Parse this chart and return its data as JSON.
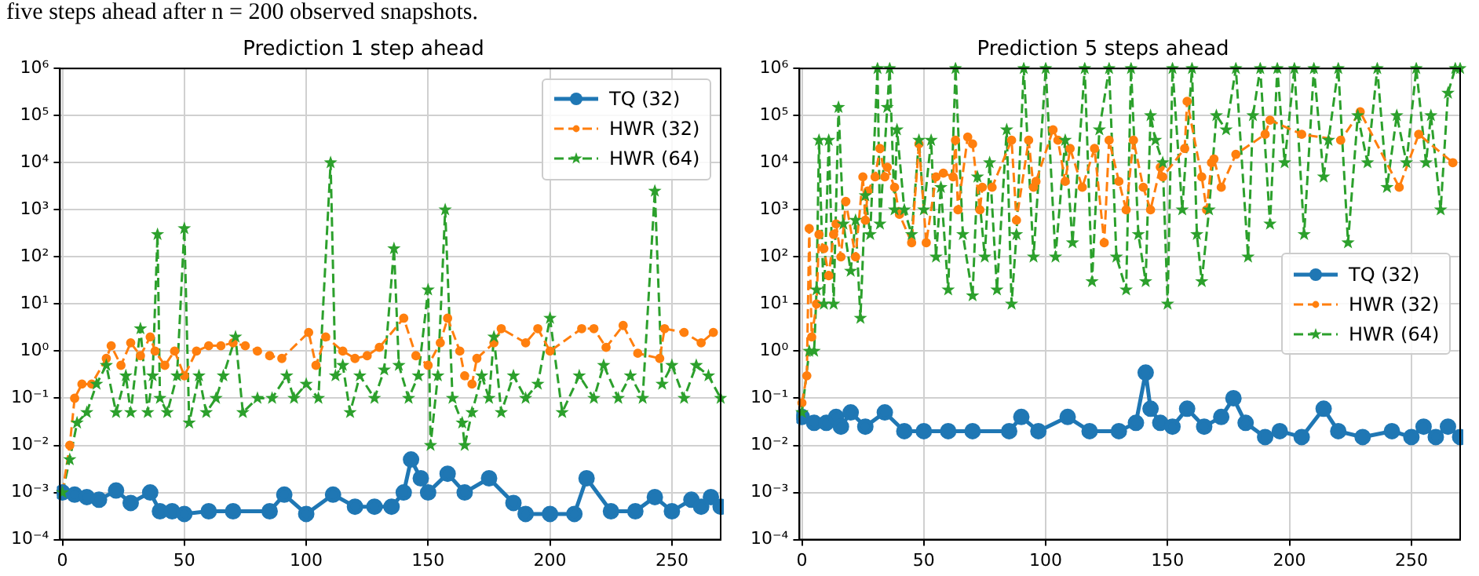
{
  "chart_data": [
    {
      "type": "line",
      "title": "Prediction 1 step ahead",
      "annotations": [
        "five steps ahead after n = 200 observed snapshots."
      ],
      "xlim": [
        -1,
        270
      ],
      "xticks": [
        0,
        50,
        100,
        150,
        200,
        250
      ],
      "log": "y",
      "ylim": [
        0.0001,
        1000000
      ],
      "yticks": [
        {
          "value": 0.0001,
          "label": "10⁻⁴"
        },
        {
          "value": 0.001,
          "label": "10⁻³"
        },
        {
          "value": 0.01,
          "label": "10⁻²"
        },
        {
          "value": 0.1,
          "label": "10⁻¹"
        },
        {
          "value": 1,
          "label": "10⁰"
        },
        {
          "value": 10,
          "label": "10¹"
        },
        {
          "value": 100,
          "label": "10²"
        },
        {
          "value": 1000,
          "label": "10³"
        },
        {
          "value": 10000,
          "label": "10⁴"
        },
        {
          "value": 100000,
          "label": "10⁵"
        },
        {
          "value": 1000000,
          "label": "10⁶"
        }
      ],
      "grid": true,
      "legend": "top right",
      "series": [
        {
          "name": "TQ (32)",
          "color": "#1f77b4",
          "marker": "circle",
          "line_style": "solid",
          "x": [
            0,
            5,
            10,
            15,
            22,
            28,
            36,
            40,
            45,
            50,
            60,
            70,
            85,
            91,
            100,
            111,
            120,
            128,
            135,
            140,
            143,
            147,
            150,
            158,
            165,
            175,
            185,
            190,
            200,
            210,
            215,
            225,
            235,
            243,
            250,
            258,
            262,
            266,
            270
          ],
          "values": [
            0.001,
            0.0009,
            0.0008,
            0.0007,
            0.0011,
            0.0006,
            0.001,
            0.0004,
            0.0004,
            0.00035,
            0.0004,
            0.0004,
            0.0004,
            0.0009,
            0.00035,
            0.0009,
            0.0005,
            0.0005,
            0.0005,
            0.001,
            0.005,
            0.002,
            0.001,
            0.0025,
            0.001,
            0.002,
            0.0006,
            0.00035,
            0.00035,
            0.00035,
            0.002,
            0.0004,
            0.0004,
            0.0008,
            0.0004,
            0.0007,
            0.0005,
            0.0008,
            0.0005
          ]
        },
        {
          "name": "HWR (32)",
          "color": "#ff7f0e",
          "marker": "circle",
          "line_style": "dashed",
          "x": [
            0,
            3,
            5,
            8,
            12,
            18,
            20,
            24,
            28,
            32,
            36,
            38,
            42,
            46,
            50,
            55,
            60,
            65,
            70,
            75,
            80,
            85,
            90,
            101,
            104,
            108,
            115,
            120,
            125,
            130,
            140,
            145,
            150,
            155,
            158,
            163,
            165,
            168,
            170,
            177,
            180,
            190,
            195,
            200,
            213,
            218,
            223,
            230,
            236,
            245,
            247,
            255,
            262,
            267
          ],
          "values": [
            0.001,
            0.01,
            0.1,
            0.2,
            0.2,
            0.7,
            1.3,
            0.5,
            1.5,
            0.8,
            2,
            1,
            0.5,
            1,
            0.3,
            1,
            1.3,
            1.3,
            1.5,
            1.3,
            1,
            0.8,
            0.7,
            2.5,
            0.5,
            2,
            1,
            0.7,
            0.8,
            1.2,
            5,
            0.8,
            0.5,
            1.5,
            5,
            1,
            0.3,
            0.2,
            0.7,
            1.5,
            3,
            1.5,
            3,
            1,
            3,
            3,
            1.2,
            3.5,
            0.9,
            0.7,
            3,
            2.5,
            1.5,
            2.5
          ]
        },
        {
          "name": "HWR (64)",
          "color": "#2ca02c",
          "marker": "star",
          "line_style": "dashed",
          "x": [
            0,
            3,
            6,
            10,
            14,
            18,
            22,
            26,
            28,
            32,
            35,
            37,
            39,
            40,
            43,
            47,
            50,
            52,
            56,
            59,
            63,
            66,
            71,
            74,
            80,
            86,
            92,
            95,
            100,
            105,
            110,
            112,
            115,
            118,
            122,
            128,
            132,
            136,
            138,
            142,
            146,
            150,
            151,
            154,
            157,
            160,
            164,
            165,
            168,
            172,
            175,
            177,
            180,
            185,
            190,
            195,
            200,
            205,
            212,
            218,
            222,
            228,
            233,
            238,
            243,
            246,
            250,
            255,
            260,
            265,
            270
          ],
          "values": [
            0.001,
            0.005,
            0.03,
            0.05,
            0.2,
            0.5,
            0.05,
            0.3,
            0.05,
            3,
            0.05,
            0.3,
            300,
            0.1,
            0.05,
            0.3,
            400,
            0.03,
            0.3,
            0.05,
            0.1,
            0.3,
            2,
            0.05,
            0.1,
            0.1,
            0.3,
            0.1,
            0.2,
            0.1,
            10000,
            0.3,
            0.5,
            0.05,
            0.3,
            0.1,
            0.4,
            150,
            0.5,
            0.1,
            0.3,
            20,
            0.01,
            0.3,
            1000,
            0.1,
            0.03,
            0.01,
            0.05,
            0.3,
            0.1,
            2,
            0.05,
            0.3,
            0.1,
            0.2,
            5,
            0.05,
            0.3,
            0.1,
            0.5,
            0.1,
            0.3,
            0.1,
            2500,
            0.2,
            0.5,
            0.1,
            0.5,
            0.3,
            0.1
          ]
        }
      ]
    },
    {
      "type": "line",
      "title": "Prediction 5 steps ahead",
      "xlim": [
        -1,
        270
      ],
      "xticks": [
        0,
        50,
        100,
        150,
        200,
        250
      ],
      "log": "y",
      "ylim": [
        0.0001,
        1000000
      ],
      "yticks": [
        {
          "value": 0.0001,
          "label": "10⁻⁴"
        },
        {
          "value": 0.001,
          "label": "10⁻³"
        },
        {
          "value": 0.01,
          "label": "10⁻²"
        },
        {
          "value": 0.1,
          "label": "10⁻¹"
        },
        {
          "value": 1,
          "label": "10⁰"
        },
        {
          "value": 10,
          "label": "10¹"
        },
        {
          "value": 100,
          "label": "10²"
        },
        {
          "value": 1000,
          "label": "10³"
        },
        {
          "value": 10000,
          "label": "10⁴"
        },
        {
          "value": 100000,
          "label": "10⁵"
        },
        {
          "value": 1000000,
          "label": "10⁶"
        }
      ],
      "grid": true,
      "legend": "right",
      "series": [
        {
          "name": "TQ (32)",
          "color": "#1f77b4",
          "marker": "circle",
          "line_style": "solid",
          "x": [
            0,
            5,
            10,
            14,
            16,
            20,
            26,
            34,
            42,
            50,
            60,
            70,
            85,
            90,
            97,
            109,
            118,
            130,
            137,
            141,
            143,
            147,
            152,
            158,
            165,
            172,
            177,
            182,
            190,
            196,
            205,
            214,
            220,
            230,
            242,
            250,
            255,
            260,
            265,
            270
          ],
          "values": [
            0.04,
            0.03,
            0.03,
            0.04,
            0.025,
            0.05,
            0.025,
            0.05,
            0.02,
            0.02,
            0.02,
            0.02,
            0.02,
            0.04,
            0.02,
            0.04,
            0.02,
            0.02,
            0.03,
            0.35,
            0.06,
            0.03,
            0.025,
            0.06,
            0.025,
            0.04,
            0.1,
            0.03,
            0.015,
            0.02,
            0.015,
            0.06,
            0.02,
            0.015,
            0.02,
            0.015,
            0.025,
            0.015,
            0.025,
            0.015
          ]
        },
        {
          "name": "HWR (32)",
          "color": "#ff7f0e",
          "marker": "circle",
          "line_style": "dashed",
          "x": [
            0,
            2,
            3,
            4,
            6,
            7,
            9,
            11,
            13,
            14,
            16,
            18,
            22,
            25,
            26,
            27,
            30,
            32,
            34,
            35,
            38,
            40,
            45,
            48,
            51,
            55,
            58,
            62,
            63,
            64,
            68,
            70,
            73,
            74,
            78,
            86,
            88,
            93,
            95,
            96,
            103,
            105,
            108,
            110,
            115,
            120,
            124,
            126,
            130,
            133,
            136,
            140,
            143,
            147,
            148,
            157,
            158,
            164,
            166,
            168,
            169,
            172,
            178,
            190,
            192,
            205,
            221,
            229,
            245,
            253,
            267
          ],
          "values": [
            0.08,
            0.3,
            400,
            2,
            10,
            300,
            150,
            40,
            300,
            500,
            100,
            1500,
            100,
            5000,
            600,
            2500,
            5000,
            20000,
            5000,
            8000,
            3000,
            800,
            200,
            25000,
            200,
            5000,
            6000,
            5000,
            30000,
            1000,
            35000,
            25000,
            1000,
            3000,
            3000,
            30000,
            600,
            30000,
            3000,
            4000,
            50000,
            30000,
            4000,
            20000,
            3000,
            20000,
            200,
            30000,
            4000,
            1000,
            30000,
            3000,
            1000,
            8000,
            5000,
            20000,
            200000,
            5000,
            1000,
            10000,
            12000,
            3000,
            15000,
            40000,
            80000,
            40000,
            30000,
            120000,
            3000,
            40000,
            10000
          ]
        },
        {
          "name": "HWR (64)",
          "color": "#2ca02c",
          "marker": "star",
          "line_style": "dashed",
          "x": [
            0,
            3,
            5,
            6,
            7,
            9,
            11,
            13,
            15,
            17,
            20,
            22,
            24,
            26,
            28,
            31,
            32,
            35,
            36,
            38,
            39,
            42,
            45,
            48,
            50,
            53,
            55,
            57,
            60,
            63,
            66,
            70,
            72,
            75,
            77,
            80,
            84,
            86,
            88,
            91,
            95,
            100,
            104,
            108,
            111,
            116,
            119,
            122,
            126,
            129,
            133,
            135,
            138,
            141,
            143,
            145,
            148,
            150,
            152,
            156,
            160,
            162,
            164,
            167,
            170,
            174,
            178,
            183,
            185,
            188,
            192,
            195,
            198,
            202,
            206,
            210,
            214,
            216,
            220,
            224,
            228,
            232,
            236,
            240,
            244,
            248,
            252,
            256,
            258,
            262,
            265,
            268,
            270
          ],
          "values": [
            0.05,
            1,
            1,
            20,
            30000,
            10,
            30000,
            10,
            150000,
            500,
            50,
            600,
            5,
            2000,
            300,
            1000000,
            500,
            150000,
            1000000,
            1000,
            50000,
            1000,
            300,
            30000,
            1000,
            30000,
            100,
            3000,
            20,
            1000000,
            300,
            15,
            5000,
            100,
            10000,
            20,
            50000,
            10,
            300,
            1000000,
            100,
            1000000,
            100,
            30000,
            200,
            1000000,
            30,
            50000,
            1000000,
            100,
            20,
            1000000,
            300,
            30,
            100000,
            30000,
            10000,
            10,
            1000000,
            1000,
            1000000,
            300,
            30,
            1000,
            100000,
            50000,
            1000000,
            100,
            100000,
            1000000,
            500,
            1000000,
            10000,
            1000000,
            300,
            1000000,
            5000,
            30000,
            1000000,
            200,
            100000,
            10000,
            1000000,
            3000,
            100000,
            10000,
            1000000,
            10000,
            100000,
            1000,
            300000,
            1000000,
            1000000
          ]
        }
      ]
    }
  ]
}
